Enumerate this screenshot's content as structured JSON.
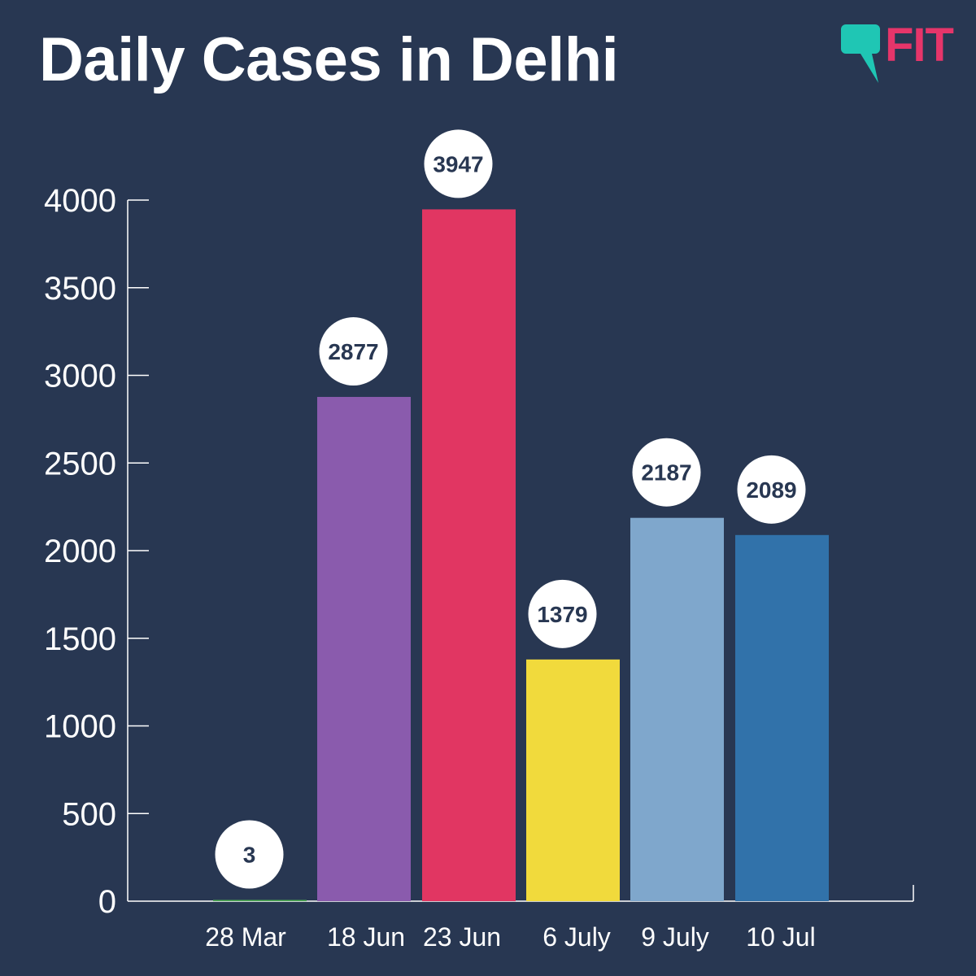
{
  "logo": {
    "text": "FIT",
    "bubble_color": "#1fc6b4",
    "text_color": "#e6356a"
  },
  "chart_data": {
    "type": "bar",
    "title": "Daily Cases in Delhi",
    "xlabel": "",
    "ylabel": "",
    "categories": [
      "28 Mar",
      "18 Jun",
      "23 Jun",
      "6 July",
      "9 July",
      "10 Jul"
    ],
    "values": [
      3,
      2877,
      3947,
      1379,
      2187,
      2089
    ],
    "colors": [
      "#4caf50",
      "#8a5bad",
      "#e13662",
      "#f1da3c",
      "#7fa7cc",
      "#3172aa"
    ],
    "yticks": [
      0,
      500,
      1000,
      1500,
      2000,
      2500,
      3000,
      3500,
      4000
    ],
    "ylim": [
      0,
      4000
    ],
    "grid": false,
    "legend": "none",
    "data_labels": true
  }
}
